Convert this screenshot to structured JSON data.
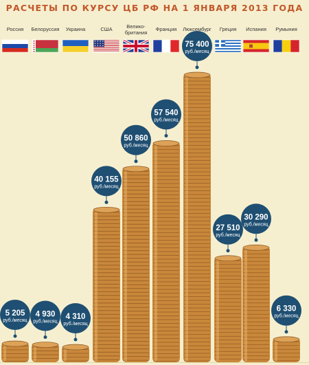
{
  "title": "РАСЧЕТЫ ПО КУРСУ ЦБ РФ НА 1 ЯНВАРЯ 2013 ГОДА",
  "colors": {
    "background": "#f6efcf",
    "bubble": "#1f4f72",
    "title": "#c2572a",
    "coin": "#c8873a",
    "coin_dark": "#8a5321"
  },
  "chart_data": {
    "type": "bar",
    "title": "РАСЧЕТЫ ПО КУРСУ ЦБ РФ НА 1 ЯНВАРЯ 2013 ГОДА",
    "unit": "руб./месяц",
    "categories": [
      {
        "name": [
          "Россия"
        ],
        "flag": "russia-flag-icon",
        "value": 5205,
        "label": "5 205"
      },
      {
        "name": [
          "Белоруссия"
        ],
        "flag": "belarus-flag-icon",
        "value": 4930,
        "label": "4 930"
      },
      {
        "name": [
          "Украина"
        ],
        "flag": "ukraine-flag-icon",
        "value": 4310,
        "label": "4 310"
      },
      {
        "name": [
          "США"
        ],
        "flag": "usa-flag-icon",
        "value": 40155,
        "label": "40 155"
      },
      {
        "name": [
          "Велико-",
          "британия"
        ],
        "flag": "uk-flag-icon",
        "value": 50860,
        "label": "50 860"
      },
      {
        "name": [
          "Франция"
        ],
        "flag": "france-flag-icon",
        "value": 57540,
        "label": "57 540"
      },
      {
        "name": [
          "Люксембург"
        ],
        "flag": "luxembourg-flag-icon",
        "value": 75400,
        "label": "75 400"
      },
      {
        "name": [
          "Греция"
        ],
        "flag": "greece-flag-icon",
        "value": 27510,
        "label": "27 510"
      },
      {
        "name": [
          "Испания"
        ],
        "flag": "spain-flag-icon",
        "value": 30290,
        "label": "30 290"
      },
      {
        "name": [
          "Румыния"
        ],
        "flag": "romania-flag-icon",
        "value": 6330,
        "label": "6 330"
      }
    ]
  }
}
